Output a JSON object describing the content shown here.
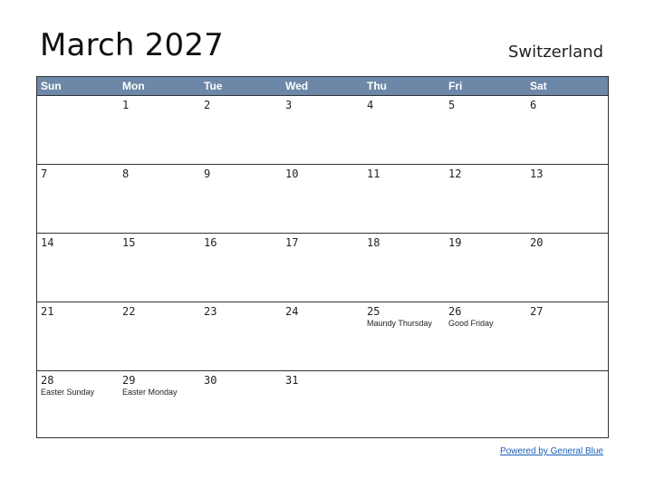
{
  "title": "March 2027",
  "country": "Switzerland",
  "weekdays": [
    "Sun",
    "Mon",
    "Tue",
    "Wed",
    "Thu",
    "Fri",
    "Sat"
  ],
  "weeks": [
    [
      {
        "d": "",
        "h": ""
      },
      {
        "d": "1",
        "h": ""
      },
      {
        "d": "2",
        "h": ""
      },
      {
        "d": "3",
        "h": ""
      },
      {
        "d": "4",
        "h": ""
      },
      {
        "d": "5",
        "h": ""
      },
      {
        "d": "6",
        "h": ""
      }
    ],
    [
      {
        "d": "7",
        "h": ""
      },
      {
        "d": "8",
        "h": ""
      },
      {
        "d": "9",
        "h": ""
      },
      {
        "d": "10",
        "h": ""
      },
      {
        "d": "11",
        "h": ""
      },
      {
        "d": "12",
        "h": ""
      },
      {
        "d": "13",
        "h": ""
      }
    ],
    [
      {
        "d": "14",
        "h": ""
      },
      {
        "d": "15",
        "h": ""
      },
      {
        "d": "16",
        "h": ""
      },
      {
        "d": "17",
        "h": ""
      },
      {
        "d": "18",
        "h": ""
      },
      {
        "d": "19",
        "h": ""
      },
      {
        "d": "20",
        "h": ""
      }
    ],
    [
      {
        "d": "21",
        "h": ""
      },
      {
        "d": "22",
        "h": ""
      },
      {
        "d": "23",
        "h": ""
      },
      {
        "d": "24",
        "h": ""
      },
      {
        "d": "25",
        "h": "Maundy Thursday"
      },
      {
        "d": "26",
        "h": "Good Friday"
      },
      {
        "d": "27",
        "h": ""
      }
    ],
    [
      {
        "d": "28",
        "h": "Easter Sunday"
      },
      {
        "d": "29",
        "h": "Easter Monday"
      },
      {
        "d": "30",
        "h": ""
      },
      {
        "d": "31",
        "h": ""
      },
      {
        "d": "",
        "h": ""
      },
      {
        "d": "",
        "h": ""
      },
      {
        "d": "",
        "h": ""
      }
    ]
  ],
  "footer": {
    "powered_by": "Powered by General Blue"
  },
  "colors": {
    "header_bg": "#6d87a8",
    "link": "#1a5fb4"
  }
}
